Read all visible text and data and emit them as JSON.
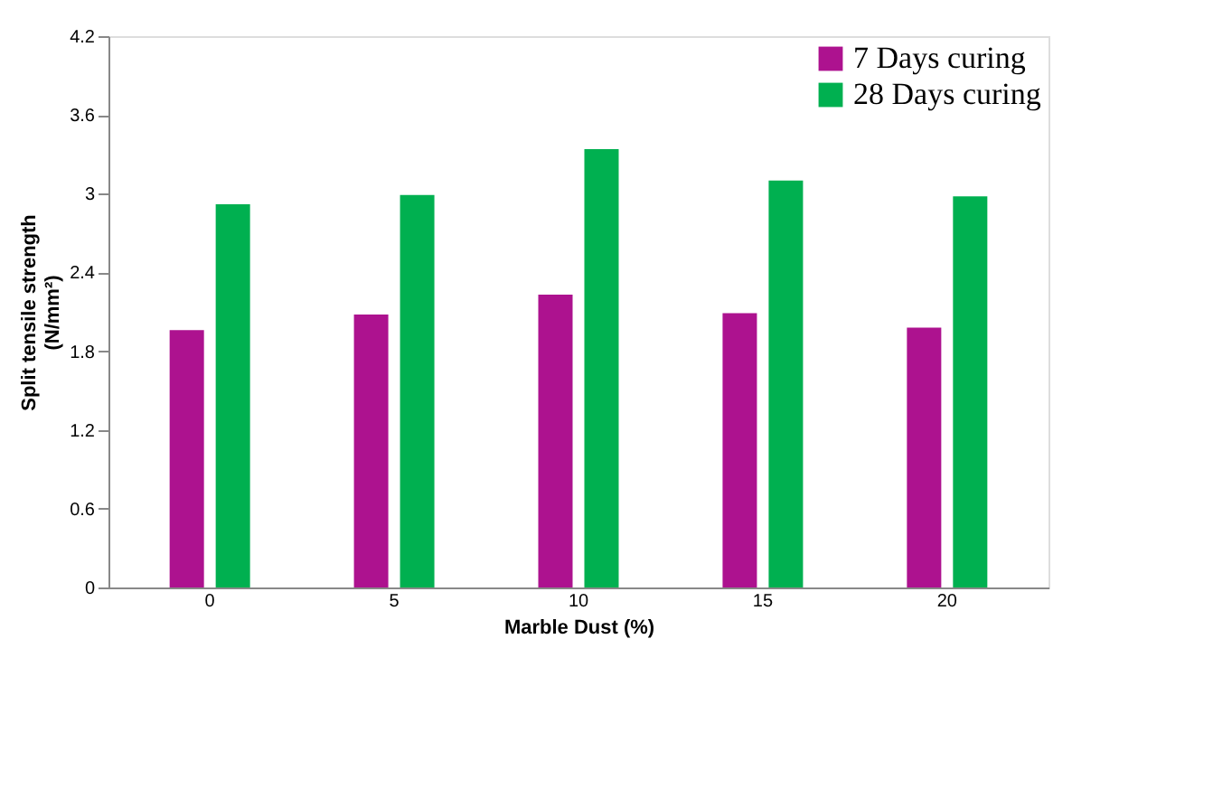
{
  "chart_data": {
    "type": "bar",
    "xlabel": "Marble Dust (%)",
    "ylabel": "Split tensile strength (N/mm²)",
    "categories": [
      "0",
      "5",
      "10",
      "15",
      "20"
    ],
    "series": [
      {
        "name": "7 Days curing",
        "color": "#ad128f",
        "values": [
          1.96,
          2.08,
          2.23,
          2.09,
          1.98
        ]
      },
      {
        "name": "28 Days curing",
        "color": "#00b050",
        "values": [
          2.92,
          2.99,
          3.34,
          3.1,
          2.98
        ]
      }
    ],
    "ylim": [
      0,
      4.2
    ],
    "yticks": [
      0,
      0.6,
      1.2,
      1.8,
      2.4,
      3,
      3.6,
      4.2
    ],
    "grid": false,
    "legend": "top right"
  }
}
